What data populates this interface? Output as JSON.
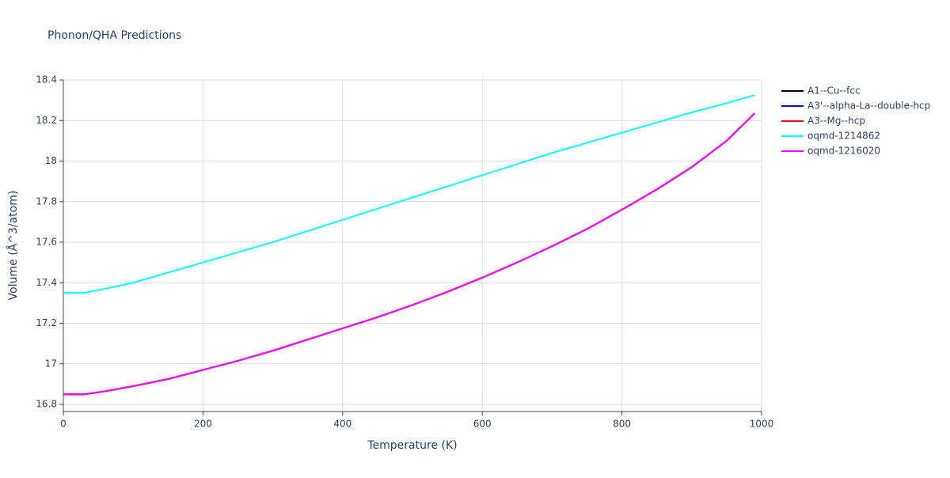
{
  "chart_data": {
    "type": "line",
    "title": "Phonon/QHA Predictions",
    "x_label": "Temperature (K)",
    "y_label": "Volume (Å^3/atom)",
    "x": [
      0,
      30,
      60,
      100,
      150,
      200,
      250,
      300,
      350,
      400,
      450,
      500,
      550,
      600,
      650,
      700,
      750,
      800,
      850,
      900,
      950,
      990
    ],
    "series": [
      {
        "name": "A1--Cu--fcc",
        "color": "#000000",
        "values": [
          16.85,
          16.85,
          16.865,
          16.89,
          16.925,
          16.97,
          17.015,
          17.065,
          17.12,
          17.175,
          17.23,
          17.29,
          17.355,
          17.425,
          17.5,
          17.58,
          17.665,
          17.76,
          17.86,
          17.97,
          18.1,
          18.235
        ]
      },
      {
        "name": "A3'--alpha-La--double-hcp",
        "color": "#0000ff",
        "values": [
          16.85,
          16.85,
          16.865,
          16.89,
          16.925,
          16.97,
          17.015,
          17.065,
          17.12,
          17.175,
          17.23,
          17.29,
          17.355,
          17.425,
          17.5,
          17.58,
          17.665,
          17.76,
          17.86,
          17.97,
          18.1,
          18.235
        ]
      },
      {
        "name": "A3--Mg--hcp",
        "color": "#ff0000",
        "values": [
          16.85,
          16.85,
          16.865,
          16.89,
          16.925,
          16.97,
          17.015,
          17.065,
          17.12,
          17.175,
          17.23,
          17.29,
          17.355,
          17.425,
          17.5,
          17.58,
          17.665,
          17.76,
          17.86,
          17.97,
          18.1,
          18.235
        ]
      },
      {
        "name": "oqmd-1214862",
        "color": "#00ffff",
        "values": [
          17.35,
          17.35,
          17.37,
          17.4,
          17.45,
          17.5,
          17.55,
          17.6,
          17.655,
          17.71,
          17.765,
          17.82,
          17.875,
          17.93,
          17.985,
          18.04,
          18.09,
          18.14,
          18.19,
          18.24,
          18.285,
          18.325
        ]
      },
      {
        "name": "oqmd-1216020",
        "color": "#ff00ff",
        "values": [
          16.85,
          16.85,
          16.865,
          16.89,
          16.925,
          16.97,
          17.015,
          17.065,
          17.12,
          17.175,
          17.23,
          17.29,
          17.355,
          17.425,
          17.5,
          17.58,
          17.665,
          17.76,
          17.86,
          17.97,
          18.1,
          18.235
        ]
      }
    ],
    "xlim": [
      0,
      1000
    ],
    "xticks": [
      0,
      200,
      400,
      600,
      800,
      1000
    ],
    "ylim": [
      16.765,
      18.4
    ],
    "yticks": [
      16.8,
      17,
      17.2,
      17.4,
      17.6,
      17.8,
      18,
      18.2,
      18.4
    ],
    "grid": true,
    "legend": "right"
  }
}
